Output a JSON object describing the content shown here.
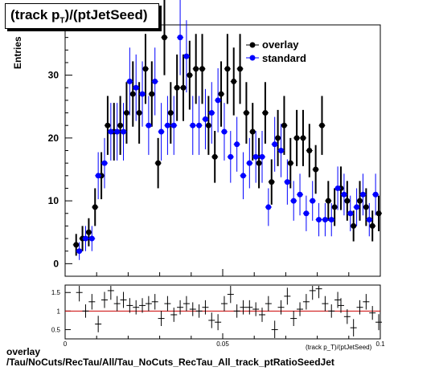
{
  "title": "(track p",
  "title_sub": "T",
  "title_tail": ")/(ptJetSeed)",
  "ylabel": "Entries",
  "xlabel": "(track p_T)/(ptJetSeed)",
  "footer_line1": "overlay",
  "footer_line2": "/Tau/NoCuts/RecTau/All/Tau_NoCuts_RecTau_All_track_ptRatioSeedJet",
  "colors": {
    "overlay": "#000000",
    "standard": "#0000ff",
    "ratio_line": "#cc0000"
  },
  "chart_data": [
    {
      "type": "scatter",
      "title": "(track p_T)/(ptJetSeed)",
      "ylabel": "Entries",
      "xlim": [
        0,
        0.1
      ],
      "ylim": [
        -2,
        38
      ],
      "yticks": [
        0,
        10,
        20,
        30
      ],
      "legend_placement": "top-right",
      "series": [
        {
          "name": "overlay",
          "marker": "circle",
          "x": [
            0.0035,
            0.0055,
            0.0075,
            0.0095,
            0.0115,
            0.0135,
            0.0155,
            0.0175,
            0.0195,
            0.0215,
            0.0235,
            0.0255,
            0.0275,
            0.0295,
            0.0315,
            0.0335,
            0.0355,
            0.0375,
            0.0395,
            0.0415,
            0.0435,
            0.0455,
            0.0475,
            0.0495,
            0.0515,
            0.0535,
            0.0555,
            0.0575,
            0.0595,
            0.0615,
            0.0635,
            0.0655,
            0.0675,
            0.0695,
            0.0715,
            0.0735,
            0.0755,
            0.0775,
            0.0795,
            0.0815,
            0.0835,
            0.0855,
            0.0875,
            0.0895,
            0.0915,
            0.0935,
            0.0955,
            0.0975,
            0.0995
          ],
          "y": [
            3,
            4,
            5,
            9,
            14,
            22,
            21,
            22,
            24,
            27,
            24,
            31,
            27,
            16,
            36,
            24,
            28,
            28,
            30,
            31,
            31,
            22,
            17,
            27,
            31,
            29,
            31,
            24,
            21,
            16,
            24,
            13,
            20,
            22,
            16,
            20,
            20,
            18,
            15,
            22,
            10,
            9,
            12,
            10,
            6,
            10,
            9,
            6,
            8
          ]
        },
        {
          "name": "standard",
          "marker": "circle",
          "x": [
            0.0045,
            0.0065,
            0.0085,
            0.0105,
            0.0125,
            0.0145,
            0.0165,
            0.0185,
            0.0205,
            0.0225,
            0.0245,
            0.0265,
            0.0285,
            0.0305,
            0.0325,
            0.0345,
            0.0365,
            0.0385,
            0.0405,
            0.0425,
            0.0445,
            0.0465,
            0.0485,
            0.0505,
            0.0525,
            0.0545,
            0.0565,
            0.0585,
            0.0605,
            0.0625,
            0.0645,
            0.0665,
            0.0685,
            0.0705,
            0.0725,
            0.0745,
            0.0765,
            0.0785,
            0.0805,
            0.0825,
            0.0845,
            0.0865,
            0.0885,
            0.0905,
            0.0925,
            0.0945,
            0.0965,
            0.0985
          ],
          "y": [
            2,
            4,
            4,
            14,
            16,
            21,
            21,
            21,
            29,
            28,
            27,
            22,
            29,
            21,
            22,
            22,
            36,
            33,
            22,
            22,
            23,
            24,
            26,
            21,
            17,
            19,
            14,
            16,
            17,
            17,
            9,
            19,
            18,
            13,
            10,
            11,
            8,
            10,
            7,
            7,
            7,
            12,
            11,
            8,
            9,
            11,
            7,
            11
          ]
        }
      ]
    },
    {
      "type": "scatter",
      "title": "",
      "xlabel": "(track p_T)/(ptJetSeed)",
      "xlim": [
        0,
        0.1
      ],
      "ylim": [
        0.25,
        1.7
      ],
      "yticks": [
        0.5,
        1,
        1.5
      ],
      "yticklabels": [
        "0.5",
        "1",
        "1.5"
      ],
      "xticks": [
        0,
        0.05,
        0.1
      ],
      "xticklabels": [
        "0",
        "0.05",
        "0.1"
      ],
      "reference_line": 1,
      "series": [
        {
          "name": "ratio",
          "x": [
            0.0045,
            0.0065,
            0.0085,
            0.0105,
            0.0125,
            0.0145,
            0.0165,
            0.0185,
            0.0205,
            0.0225,
            0.0245,
            0.0265,
            0.0285,
            0.0305,
            0.0325,
            0.0345,
            0.0365,
            0.0385,
            0.0405,
            0.0425,
            0.0445,
            0.0465,
            0.0485,
            0.0505,
            0.0525,
            0.0545,
            0.0565,
            0.0585,
            0.0605,
            0.0625,
            0.0645,
            0.0665,
            0.0685,
            0.0705,
            0.0725,
            0.0745,
            0.0765,
            0.0785,
            0.0805,
            0.0825,
            0.0845,
            0.0865,
            0.0875,
            0.0895,
            0.0915,
            0.0935,
            0.0955,
            0.0975,
            0.0995
          ],
          "y": [
            1.5,
            1.0,
            1.25,
            0.65,
            1.3,
            1.55,
            1.2,
            1.3,
            1.15,
            1.1,
            1.15,
            1.2,
            1.25,
            0.8,
            1.2,
            0.9,
            1.1,
            1.2,
            1.05,
            1.0,
            1.1,
            0.75,
            0.7,
            1.2,
            1.45,
            1.0,
            1.1,
            1.1,
            1.05,
            0.9,
            1.2,
            0.5,
            1.1,
            1.4,
            0.8,
            1.05,
            1.25,
            1.55,
            1.6,
            1.2,
            1.0,
            1.3,
            1.15,
            0.85,
            0.55,
            1.1,
            1.25,
            0.95,
            0.7
          ]
        }
      ]
    }
  ]
}
